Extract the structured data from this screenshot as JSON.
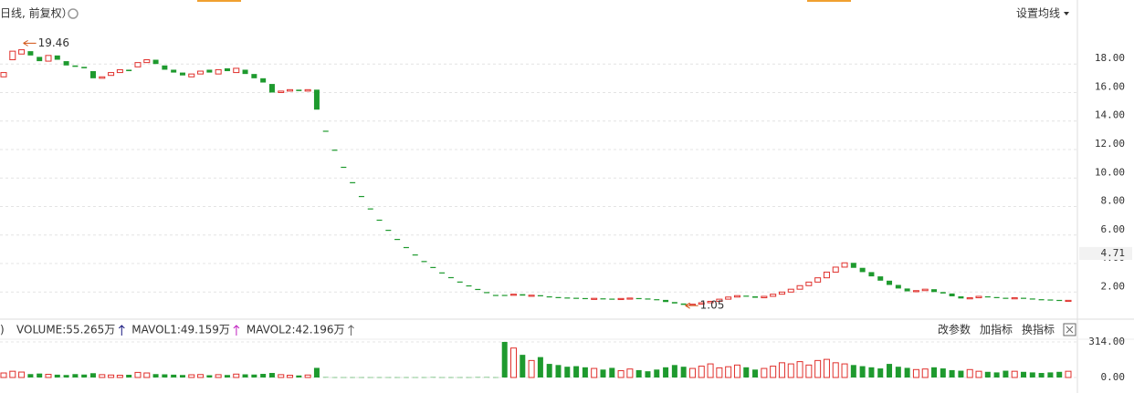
{
  "chart_data": [
    {
      "type": "candlestick",
      "title": "日线, 前复权）",
      "menu": "设置均线",
      "open": [
        17.1,
        18.3,
        18.7,
        18.9,
        18.5,
        18.2,
        18.6,
        18.2,
        17.9,
        17.8,
        17.5,
        17.0,
        17.2,
        17.4,
        17.6,
        17.8,
        18.1,
        18.3,
        17.9,
        17.6,
        17.4,
        17.1,
        17.3,
        17.6,
        17.3,
        17.7,
        17.4,
        17.6,
        17.3,
        17.0,
        16.6,
        16.0,
        16.1,
        16.2,
        16.1,
        16.2,
        13.32,
        11.99,
        10.79,
        9.71,
        8.74,
        7.87,
        7.08,
        6.37,
        5.73,
        5.16,
        4.64,
        4.18,
        3.76,
        3.38,
        3.05,
        2.74,
        2.47,
        2.22,
        2.0,
        1.8,
        1.8,
        1.8,
        1.85,
        1.75,
        1.78,
        1.7,
        1.65,
        1.62,
        1.6,
        1.58,
        1.55,
        1.56,
        1.54,
        1.52,
        1.55,
        1.58,
        1.55,
        1.5,
        1.45,
        1.3,
        1.2,
        1.1,
        1.15,
        1.25,
        1.35,
        1.5,
        1.65,
        1.75,
        1.7,
        1.6,
        1.7,
        1.85,
        2.0,
        2.2,
        2.45,
        2.7,
        3.0,
        3.4,
        3.75,
        4.05,
        3.7,
        3.4,
        3.1,
        2.8,
        2.5,
        2.25,
        2.05,
        2.1,
        2.2,
        2.0,
        1.9,
        1.7,
        1.55,
        1.6,
        1.7,
        1.65,
        1.6,
        1.55,
        1.6,
        1.55,
        1.5,
        1.48,
        1.45,
        1.4
      ],
      "close": [
        17.4,
        18.9,
        19.0,
        18.6,
        18.2,
        18.6,
        18.3,
        17.9,
        17.8,
        17.7,
        17.0,
        17.1,
        17.4,
        17.6,
        17.5,
        18.1,
        18.3,
        18.0,
        17.6,
        17.4,
        17.2,
        17.3,
        17.5,
        17.4,
        17.6,
        17.5,
        17.7,
        17.3,
        17.0,
        16.7,
        16.0,
        16.1,
        16.2,
        16.1,
        16.2,
        14.8,
        13.32,
        11.99,
        10.79,
        9.71,
        8.74,
        7.87,
        7.08,
        6.37,
        5.73,
        5.16,
        4.64,
        4.18,
        3.76,
        3.38,
        3.05,
        2.74,
        2.47,
        2.22,
        2.0,
        1.8,
        1.8,
        1.85,
        1.75,
        1.78,
        1.7,
        1.65,
        1.62,
        1.6,
        1.58,
        1.55,
        1.56,
        1.54,
        1.52,
        1.55,
        1.58,
        1.55,
        1.5,
        1.45,
        1.3,
        1.2,
        1.1,
        1.15,
        1.25,
        1.35,
        1.5,
        1.65,
        1.75,
        1.7,
        1.6,
        1.7,
        1.85,
        2.0,
        2.2,
        2.45,
        2.7,
        3.0,
        3.4,
        3.75,
        4.05,
        3.7,
        3.4,
        3.1,
        2.8,
        2.5,
        2.25,
        2.05,
        2.1,
        2.2,
        2.0,
        1.9,
        1.7,
        1.55,
        1.6,
        1.7,
        1.65,
        1.6,
        1.55,
        1.6,
        1.55,
        1.5,
        1.48,
        1.45,
        1.4,
        1.42
      ],
      "up_color": "#e0302c",
      "down_color": "#1e9a2e",
      "ylim": [
        0.1,
        20.7
      ],
      "yticks": [
        {
          "value": 2,
          "label": "2.00"
        },
        {
          "value": 4,
          "label": "4.00"
        },
        {
          "value": 6,
          "label": "6.00"
        },
        {
          "value": 8,
          "label": "8.00"
        },
        {
          "value": 10,
          "label": "10.00"
        },
        {
          "value": 12,
          "label": "12.00"
        },
        {
          "value": 14,
          "label": "14.00"
        },
        {
          "value": 16,
          "label": "16.00"
        },
        {
          "value": 18,
          "label": "18.00"
        }
      ],
      "last_price": 4.71,
      "annotations": [
        {
          "index": 2,
          "value": 19.46
        },
        {
          "index": 76,
          "value": 1.05
        }
      ],
      "grid": true
    },
    {
      "type": "volume",
      "indicators": [
        "VOLUME:55.265万",
        "MAVOL1:49.159万",
        "MAVOL2:42.196万"
      ],
      "indicator_colors": [
        "#1a1a80",
        "#c020c0",
        "#666666"
      ],
      "buttons": [
        "改参数",
        "加指标",
        "换指标"
      ],
      "values": [
        40,
        55,
        48,
        30,
        35,
        28,
        25,
        22,
        30,
        26,
        38,
        25,
        22,
        20,
        24,
        45,
        40,
        30,
        28,
        25,
        22,
        24,
        26,
        20,
        25,
        22,
        30,
        28,
        26,
        32,
        40,
        25,
        20,
        18,
        22,
        85,
        3,
        2,
        2,
        2,
        2,
        2,
        2,
        2,
        2,
        2,
        2,
        2,
        3,
        2,
        2,
        2,
        2,
        3,
        3,
        2,
        314,
        260,
        200,
        150,
        180,
        120,
        110,
        95,
        100,
        90,
        80,
        70,
        85,
        60,
        75,
        65,
        55,
        70,
        90,
        110,
        95,
        80,
        100,
        120,
        85,
        95,
        110,
        90,
        70,
        80,
        100,
        130,
        120,
        140,
        110,
        150,
        160,
        130,
        120,
        110,
        100,
        90,
        80,
        120,
        95,
        85,
        70,
        75,
        90,
        80,
        65,
        60,
        70,
        55,
        50,
        45,
        60,
        55,
        50,
        45,
        40,
        45,
        50,
        55
      ],
      "ylim": [
        0,
        354
      ],
      "yticks": [
        {
          "value": 0,
          "label": "0.00"
        },
        {
          "value": 314,
          "label": "314.00"
        }
      ]
    }
  ]
}
